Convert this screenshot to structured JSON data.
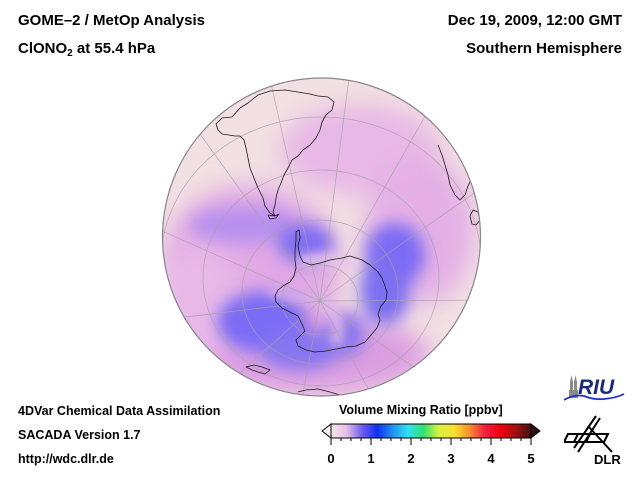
{
  "header": {
    "title_line1": "GOME–2 / MetOp Analysis",
    "species_main": "ClONO",
    "species_sub": "2",
    "species_rest": " at 55.4 hPa",
    "date": "Dec 19, 2009, 12:00 GMT",
    "hemisphere": "Southern Hemisphere"
  },
  "footer": {
    "line1": "4DVar Chemical Data Assimilation",
    "line2": "SACADA Version 1.7",
    "line3": "http://wdc.dlr.de"
  },
  "colorbar": {
    "title": "Volume Mixing Ratio [ppbv]",
    "ticks": [
      "0",
      "1",
      "2",
      "3",
      "4",
      "5"
    ],
    "min": 0,
    "max": 5,
    "colors": [
      "#f5e6e6",
      "#e8c0e8",
      "#7060f0",
      "#1030f0",
      "#2090f0",
      "#30e0f0",
      "#30e070",
      "#d8f040",
      "#f8e030",
      "#f89030",
      "#f02040",
      "#f00010",
      "#a01010",
      "#401010"
    ]
  },
  "logos": {
    "riu_text": "RIU",
    "dlr_text": "DLR"
  },
  "map": {
    "projection": "orthographic",
    "land_outline_color": "#000000",
    "background_color": "#f2e0e2",
    "low_color": "#7a6cf4",
    "mid_color": "#d79ae0"
  }
}
